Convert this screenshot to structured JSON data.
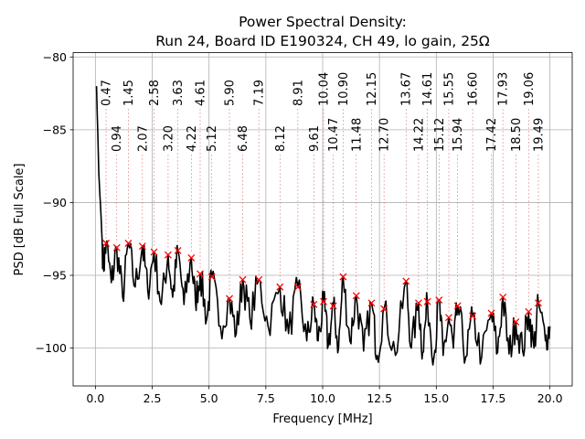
{
  "chart_data": {
    "type": "line",
    "title": "Power Spectral Density:",
    "subtitle": "Run 24, Board ID E190324, CH 49, lo gain, 25Ω",
    "xlabel": "Frequency [MHz]",
    "ylabel": "PSD [dB Full Scale]",
    "xlim": [
      -0.98,
      20.98
    ],
    "ylim": [
      -102.6,
      -79.7
    ],
    "grid": true,
    "xticks": [
      0.0,
      2.5,
      5.0,
      7.5,
      10.0,
      12.5,
      15.0,
      17.5,
      20.0
    ],
    "xtick_labels": [
      "0.0",
      "2.5",
      "5.0",
      "7.5",
      "10.0",
      "12.5",
      "15.0",
      "17.5",
      "20.0"
    ],
    "yticks": [
      -80,
      -85,
      -90,
      -95,
      -100
    ],
    "ytick_labels": [
      "−80",
      "−85",
      "−90",
      "−95",
      "−100"
    ],
    "line_color": "#000000",
    "marker_color": "#ff0000",
    "trace": {
      "x": [
        0.05,
        0.15,
        0.25,
        0.35,
        0.47,
        0.7,
        0.94,
        1.2,
        1.45,
        1.75,
        2.07,
        2.3,
        2.58,
        2.9,
        3.2,
        3.4,
        3.63,
        3.9,
        4.22,
        4.4,
        4.61,
        4.9,
        5.12,
        5.5,
        5.9,
        6.2,
        6.48,
        6.8,
        7.19,
        7.6,
        8.12,
        8.5,
        8.91,
        9.3,
        9.61,
        9.8,
        10.04,
        10.25,
        10.47,
        10.7,
        10.9,
        11.2,
        11.48,
        11.8,
        12.15,
        12.4,
        12.7,
        13.2,
        13.67,
        13.9,
        14.22,
        14.4,
        14.61,
        14.9,
        15.12,
        15.3,
        15.55,
        15.75,
        15.94,
        16.3,
        16.6,
        17.0,
        17.42,
        17.7,
        17.93,
        18.2,
        18.5,
        18.8,
        19.06,
        19.3,
        19.49,
        19.8,
        20.0
      ],
      "y": [
        -82.0,
        -88.0,
        -91.0,
        -94.5,
        -92.8,
        -95.5,
        -93.1,
        -96.5,
        -92.8,
        -95.8,
        -93.0,
        -96.0,
        -93.4,
        -97.0,
        -93.6,
        -96.5,
        -93.3,
        -97.0,
        -93.8,
        -96.8,
        -94.9,
        -98.0,
        -95.1,
        -98.5,
        -96.6,
        -99.0,
        -95.3,
        -98.0,
        -95.3,
        -98.5,
        -95.8,
        -99.0,
        -95.8,
        -99.5,
        -97.0,
        -99.5,
        -96.8,
        -99.8,
        -97.1,
        -100.0,
        -95.1,
        -99.5,
        -96.4,
        -100.2,
        -96.9,
        -100.5,
        -97.3,
        -100.5,
        -95.4,
        -100.0,
        -96.9,
        -100.3,
        -96.8,
        -100.6,
        -96.7,
        -100.5,
        -97.9,
        -100.0,
        -97.1,
        -100.6,
        -97.8,
        -100.6,
        -97.6,
        -100.3,
        -96.5,
        -100.4,
        -98.2,
        -100.2,
        -97.5,
        -100.0,
        -96.9,
        -99.5,
        -98.5
      ]
    },
    "peaks": [
      {
        "x": 0.47,
        "y": -92.8,
        "label": "0.47"
      },
      {
        "x": 0.94,
        "y": -93.1,
        "label": "0.94"
      },
      {
        "x": 1.45,
        "y": -92.8,
        "label": "1.45"
      },
      {
        "x": 2.07,
        "y": -93.0,
        "label": "2.07"
      },
      {
        "x": 2.58,
        "y": -93.4,
        "label": "2.58"
      },
      {
        "x": 3.2,
        "y": -93.6,
        "label": "3.20"
      },
      {
        "x": 3.63,
        "y": -93.3,
        "label": "3.63"
      },
      {
        "x": 4.22,
        "y": -93.8,
        "label": "4.22"
      },
      {
        "x": 4.61,
        "y": -94.9,
        "label": "4.61"
      },
      {
        "x": 5.12,
        "y": -95.1,
        "label": "5.12"
      },
      {
        "x": 5.9,
        "y": -96.6,
        "label": "5.90"
      },
      {
        "x": 6.48,
        "y": -95.3,
        "label": "6.48"
      },
      {
        "x": 7.19,
        "y": -95.3,
        "label": "7.19"
      },
      {
        "x": 8.12,
        "y": -95.8,
        "label": "8.12"
      },
      {
        "x": 8.91,
        "y": -95.8,
        "label": "8.91"
      },
      {
        "x": 9.61,
        "y": -97.0,
        "label": "9.61"
      },
      {
        "x": 10.04,
        "y": -96.8,
        "label": "10.04"
      },
      {
        "x": 10.47,
        "y": -97.1,
        "label": "10.47"
      },
      {
        "x": 10.9,
        "y": -95.1,
        "label": "10.90"
      },
      {
        "x": 11.48,
        "y": -96.4,
        "label": "11.48"
      },
      {
        "x": 12.15,
        "y": -96.9,
        "label": "12.15"
      },
      {
        "x": 12.7,
        "y": -97.3,
        "label": "12.70"
      },
      {
        "x": 13.67,
        "y": -95.4,
        "label": "13.67"
      },
      {
        "x": 14.22,
        "y": -96.9,
        "label": "14.22"
      },
      {
        "x": 14.61,
        "y": -96.8,
        "label": "14.61"
      },
      {
        "x": 15.12,
        "y": -96.7,
        "label": "15.12"
      },
      {
        "x": 15.55,
        "y": -97.9,
        "label": "15.55"
      },
      {
        "x": 15.94,
        "y": -97.1,
        "label": "15.94"
      },
      {
        "x": 16.6,
        "y": -97.8,
        "label": "16.60"
      },
      {
        "x": 17.42,
        "y": -97.6,
        "label": "17.42"
      },
      {
        "x": 17.93,
        "y": -96.5,
        "label": "17.93"
      },
      {
        "x": 18.5,
        "y": -98.2,
        "label": "18.50"
      },
      {
        "x": 19.06,
        "y": -97.5,
        "label": "19.06"
      },
      {
        "x": 19.49,
        "y": -96.9,
        "label": "19.49"
      }
    ]
  }
}
